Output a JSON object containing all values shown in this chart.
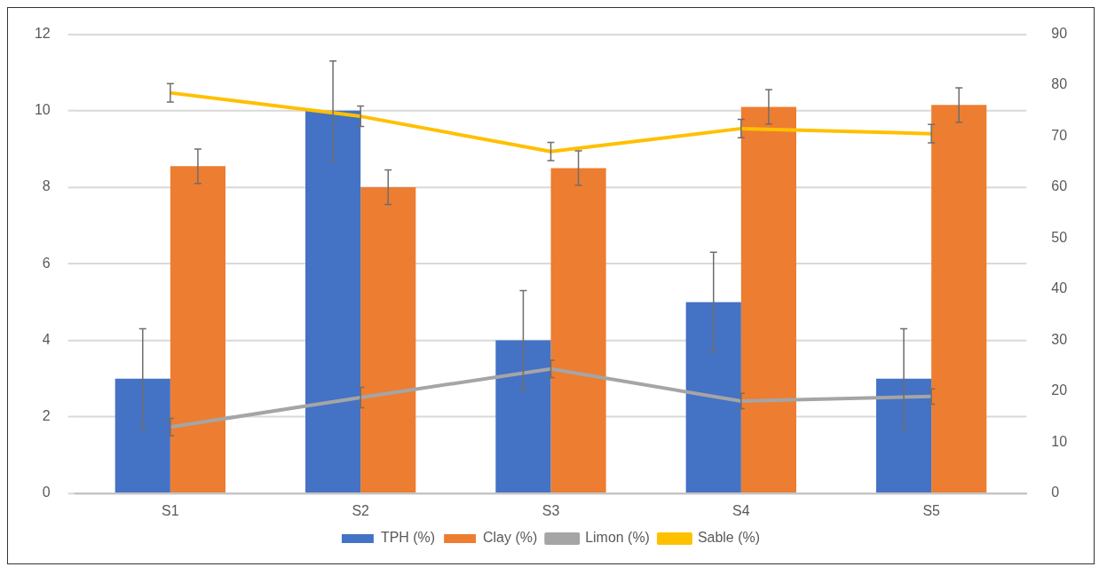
{
  "chart_data": {
    "type": "bar",
    "categories": [
      "S1",
      "S2",
      "S3",
      "S4",
      "S5"
    ],
    "series": [
      {
        "name": "TPH (%)",
        "color": "#4472c4",
        "values": [
          3,
          10,
          4,
          5,
          3
        ],
        "errors": [
          1.3,
          1.3,
          1.3,
          1.3,
          1.3
        ]
      },
      {
        "name": "Clay (%)",
        "color": "#ed7d31",
        "values": [
          8.55,
          8.0,
          8.5,
          10.1,
          10.15
        ],
        "errors": [
          0.45,
          0.45,
          0.45,
          0.45,
          0.45
        ]
      },
      {
        "name": "Limon (%)",
        "type": "line",
        "axis": "y2",
        "color": "#a5a5a5",
        "values": [
          13,
          18.8,
          24.4,
          18.1,
          19
        ],
        "errors": [
          1.7,
          2,
          1.7,
          1.5,
          1.5
        ]
      },
      {
        "name": "Sable (%)",
        "type": "line",
        "axis": "y2",
        "color": "#ffc000",
        "values": [
          78.5,
          73.9,
          67,
          71.5,
          70.5
        ],
        "errors": [
          1.8,
          2,
          1.8,
          1.8,
          1.8
        ]
      }
    ],
    "ylim": [
      0,
      12
    ],
    "yticks": [
      0,
      2,
      4,
      6,
      8,
      10,
      12
    ],
    "y2lim": [
      0,
      90
    ],
    "y2ticks": [
      0,
      10,
      20,
      30,
      40,
      50,
      60,
      70,
      80,
      90
    ],
    "grid": "y",
    "legend": "bottom",
    "marker": "none",
    "line_style": "solid"
  }
}
